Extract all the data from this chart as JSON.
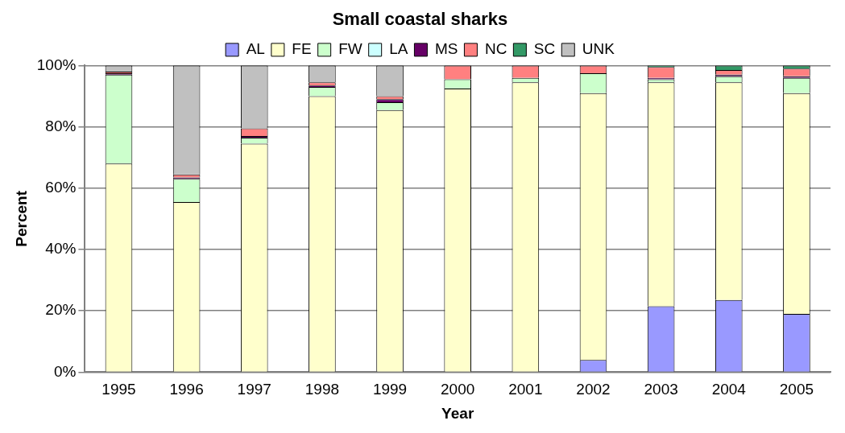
{
  "chart_data": {
    "type": "bar",
    "title": "Small coastal sharks",
    "xlabel": "Year",
    "ylabel": "Percent",
    "stacked": true,
    "legend": "top",
    "grid": "y",
    "categories": [
      "1995",
      "1996",
      "1997",
      "1998",
      "1999",
      "2000",
      "2001",
      "2002",
      "2003",
      "2004",
      "2005"
    ],
    "ylim": [
      0,
      100
    ],
    "yticks": [
      {
        "value": 0,
        "label": "0%"
      },
      {
        "value": 20,
        "label": "20%"
      },
      {
        "value": 40,
        "label": "40%"
      },
      {
        "value": 60,
        "label": "60%"
      },
      {
        "value": 80,
        "label": "80%"
      },
      {
        "value": 100,
        "label": "100%"
      }
    ],
    "series": [
      {
        "name": "AL",
        "color": "#9999ff",
        "values": [
          0,
          0,
          0,
          0,
          0,
          0,
          0,
          4,
          21.5,
          23.5,
          19
        ]
      },
      {
        "name": "FE",
        "color": "#ffffcc",
        "values": [
          68,
          55.5,
          74.5,
          90,
          85.5,
          92.5,
          94.5,
          87,
          73,
          71,
          72
        ]
      },
      {
        "name": "FW",
        "color": "#ccffcc",
        "values": [
          29,
          7.5,
          2,
          3,
          2.5,
          3,
          1.5,
          6.5,
          1,
          2,
          5
        ]
      },
      {
        "name": "LA",
        "color": "#ccffff",
        "values": [
          0,
          0,
          0,
          0,
          0,
          0,
          0,
          0,
          0,
          0,
          0
        ]
      },
      {
        "name": "MS",
        "color": "#660066",
        "values": [
          0.5,
          0.5,
          0.5,
          0.5,
          1,
          0,
          0,
          0,
          0.5,
          0.5,
          0.5
        ]
      },
      {
        "name": "NC",
        "color": "#ff8080",
        "values": [
          0.5,
          1,
          2.5,
          1,
          1,
          4.5,
          4,
          2.5,
          3.5,
          1.5,
          2.5
        ]
      },
      {
        "name": "SC",
        "color": "#339966",
        "values": [
          0,
          0,
          0,
          0,
          0,
          0,
          0,
          0,
          0.5,
          1.5,
          1
        ]
      },
      {
        "name": "UNK",
        "color": "#c0c0c0",
        "values": [
          2,
          35.5,
          20.5,
          5.5,
          10,
          0,
          0,
          0,
          0,
          0,
          0
        ]
      }
    ]
  }
}
